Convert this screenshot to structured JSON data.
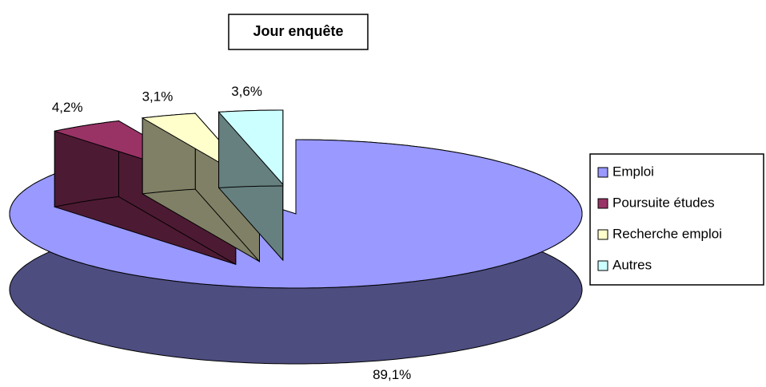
{
  "chart_data": {
    "type": "pie3d",
    "title": "Jour enquête",
    "categories": [
      "Emploi",
      "Poursuite études",
      "Recherche emploi",
      "Autres"
    ],
    "values": [
      89.1,
      4.2,
      3.1,
      3.6
    ],
    "value_labels": [
      "89,1%",
      "4,2%",
      "3,1%",
      "3,6%"
    ],
    "colors": [
      "#9999ff",
      "#993366",
      "#ffffcc",
      "#ccffff"
    ],
    "legend": "right"
  }
}
